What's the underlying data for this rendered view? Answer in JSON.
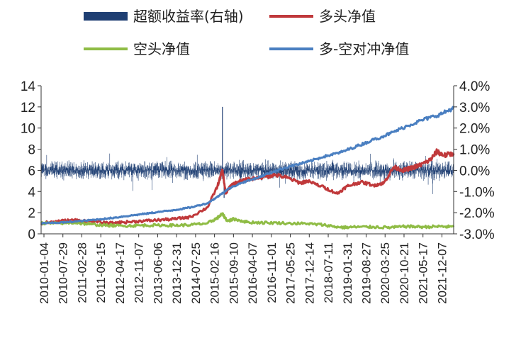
{
  "chart_data": {
    "type": "line",
    "legend": [
      {
        "label": "超额收益率(右轴)",
        "color": "#1f3f73",
        "kind": "bar"
      },
      {
        "label": "多头净值",
        "color": "#c0393b",
        "kind": "line"
      },
      {
        "label": "空头净值",
        "color": "#8fbc45",
        "kind": "line"
      },
      {
        "label": "多-空对冲净值",
        "color": "#4a7fc1",
        "kind": "line"
      }
    ],
    "legend_placement": "top",
    "x_tick_labels": [
      "2010-01-04",
      "2010-07-29",
      "2011-02-28",
      "2011-09-15",
      "2012-04-17",
      "2012-11-07",
      "2013-06-06",
      "2013-12-31",
      "2014-07-25",
      "2015-02-16",
      "2015-09-10",
      "2016-04-07",
      "2016-11-01",
      "2017-05-25",
      "2017-12-14",
      "2018-07-11",
      "2019-01-31",
      "2019-08-27",
      "2020-03-25",
      "2020-10-21",
      "2021-05-17",
      "2021-12-07"
    ],
    "y_left": {
      "ticks": [
        "0",
        "2",
        "4",
        "6",
        "8",
        "10",
        "12",
        "14"
      ],
      "range": [
        0,
        14
      ]
    },
    "y_right": {
      "ticks": [
        "-3.0%",
        "-2.0%",
        "-1.0%",
        "0.0%",
        "1.0%",
        "2.0%",
        "3.0%",
        "4.0%"
      ],
      "range": [
        -3.0,
        4.0
      ],
      "unit": "%"
    },
    "x_range": [
      2010.0,
      2022.4
    ],
    "series": [
      {
        "name": "多头净值",
        "axis": "left",
        "color": "#c0393b",
        "x": [
          2010.0,
          2010.5,
          2011.0,
          2011.5,
          2012.0,
          2012.5,
          2013.0,
          2013.5,
          2014.0,
          2014.5,
          2015.0,
          2015.3,
          2015.45,
          2015.55,
          2015.7,
          2016.0,
          2016.3,
          2016.8,
          2017.0,
          2017.4,
          2017.8,
          2018.0,
          2018.5,
          2018.9,
          2019.2,
          2019.6,
          2020.0,
          2020.3,
          2020.6,
          2020.9,
          2021.1,
          2021.4,
          2021.7,
          2021.9,
          2022.1,
          2022.4
        ],
        "y": [
          1.0,
          1.2,
          1.3,
          1.2,
          1.0,
          1.1,
          1.2,
          1.3,
          1.4,
          1.6,
          2.5,
          4.5,
          6.0,
          3.8,
          4.6,
          5.0,
          5.2,
          5.4,
          5.6,
          5.3,
          4.8,
          5.0,
          4.4,
          3.8,
          4.5,
          4.9,
          4.6,
          4.8,
          6.3,
          6.0,
          6.2,
          6.5,
          7.0,
          7.8,
          7.4,
          7.6
        ]
      },
      {
        "name": "空头净值",
        "axis": "left",
        "color": "#8fbc45",
        "x": [
          2010.0,
          2010.5,
          2011.0,
          2011.5,
          2012.0,
          2012.5,
          2013.0,
          2013.5,
          2014.0,
          2014.5,
          2015.0,
          2015.3,
          2015.45,
          2015.6,
          2015.8,
          2016.2,
          2016.8,
          2017.5,
          2018.0,
          2018.5,
          2019.0,
          2019.5,
          2020.0,
          2020.5,
          2021.0,
          2021.5,
          2022.0,
          2022.4
        ],
        "y": [
          1.0,
          1.0,
          1.05,
          0.9,
          0.8,
          0.75,
          0.8,
          0.82,
          0.8,
          0.85,
          1.0,
          1.5,
          1.9,
          1.2,
          1.4,
          1.1,
          1.05,
          1.0,
          0.95,
          0.85,
          0.6,
          0.65,
          0.65,
          0.6,
          0.7,
          0.65,
          0.7,
          0.65
        ]
      },
      {
        "name": "多-空对冲净值",
        "axis": "left",
        "color": "#4a7fc1",
        "x": [
          2010.0,
          2010.5,
          2011.0,
          2011.5,
          2012.0,
          2012.5,
          2013.0,
          2013.5,
          2014.0,
          2014.5,
          2015.0,
          2015.3,
          2015.6,
          2016.0,
          2016.5,
          2017.0,
          2017.5,
          2018.0,
          2018.5,
          2019.0,
          2019.5,
          2020.0,
          2020.5,
          2021.0,
          2021.5,
          2022.0,
          2022.4
        ],
        "y": [
          1.0,
          1.05,
          1.15,
          1.3,
          1.45,
          1.65,
          1.85,
          2.05,
          2.25,
          2.5,
          2.9,
          3.5,
          4.2,
          4.8,
          5.3,
          5.9,
          6.4,
          6.8,
          7.3,
          7.7,
          8.3,
          8.9,
          9.5,
          10.2,
          10.8,
          11.3,
          11.9
        ]
      },
      {
        "name": "超额收益率(右轴)",
        "axis": "right",
        "color": "#1f3f73",
        "x_range": [
          2010.0,
          2022.4
        ],
        "count": 2900,
        "amplitude_pct": 0.4,
        "spikes": [
          {
            "x": 2015.45,
            "y": 3.0
          },
          {
            "x": 2015.5,
            "y": -1.3
          }
        ]
      }
    ]
  }
}
